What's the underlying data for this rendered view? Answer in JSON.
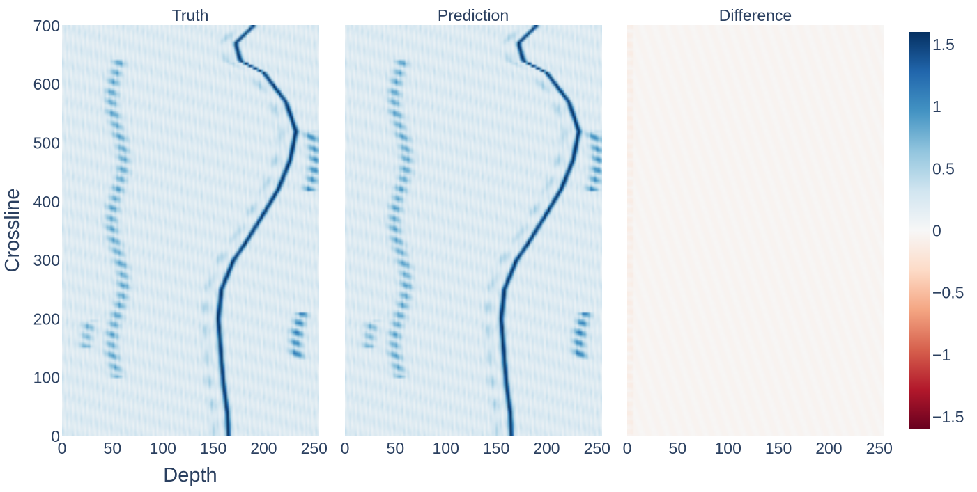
{
  "chart_data": {
    "type": "heatmap",
    "colorscale": "RdBu",
    "colorscale_reversed": false,
    "zlim": [
      -1.6,
      1.6
    ],
    "colorbar": {
      "ticks": [
        1.5,
        1,
        0.5,
        0,
        -0.5,
        -1,
        -1.5
      ],
      "tick_labels": [
        "1.5",
        "1",
        "0.5",
        "0",
        "−0.5",
        "−1",
        "−1.5"
      ]
    },
    "xlabel": "Depth",
    "ylabel": "Crossline",
    "xlim": [
      0,
      255
    ],
    "ylim": [
      0,
      701
    ],
    "x_ticks": [
      0,
      50,
      100,
      150,
      200,
      250
    ],
    "x_tick_labels": [
      "0",
      "50",
      "100",
      "150",
      "200",
      "250"
    ],
    "y_ticks": [
      0,
      100,
      200,
      300,
      400,
      500,
      600,
      700
    ],
    "y_tick_labels": [
      "0",
      "100",
      "200",
      "300",
      "400",
      "500",
      "600",
      "700"
    ],
    "panels": [
      {
        "title": "Truth",
        "kind": "seismic"
      },
      {
        "title": "Prediction",
        "kind": "seismic"
      },
      {
        "title": "Difference",
        "kind": "residual"
      }
    ],
    "bright_horizon": {
      "description_points": [
        {
          "crossline": 0,
          "depth": 165
        },
        {
          "crossline": 40,
          "depth": 164
        },
        {
          "crossline": 90,
          "depth": 160
        },
        {
          "crossline": 130,
          "depth": 158
        },
        {
          "crossline": 200,
          "depth": 155
        },
        {
          "crossline": 250,
          "depth": 158
        },
        {
          "crossline": 300,
          "depth": 170
        },
        {
          "crossline": 330,
          "depth": 182
        },
        {
          "crossline": 380,
          "depth": 200
        },
        {
          "crossline": 420,
          "depth": 214
        },
        {
          "crossline": 470,
          "depth": 226
        },
        {
          "crossline": 520,
          "depth": 232
        },
        {
          "crossline": 570,
          "depth": 222
        },
        {
          "crossline": 620,
          "depth": 200
        },
        {
          "crossline": 640,
          "depth": 177
        },
        {
          "crossline": 670,
          "depth": 172
        },
        {
          "crossline": 700,
          "depth": 190
        }
      ],
      "amplitude": 1.45
    },
    "secondary_bands": [
      {
        "depth_center": 55,
        "crossline_range": [
          100,
          640
        ],
        "amplitude": 0.65
      },
      {
        "depth_center": 30,
        "crossline_range": [
          150,
          200
        ],
        "amplitude": 0.55
      },
      {
        "depth_center": 238,
        "crossline_range": [
          130,
          210
        ],
        "amplitude": 0.9
      },
      {
        "depth_center": 245,
        "crossline_range": [
          420,
          520
        ],
        "amplitude": 0.8
      }
    ],
    "difference_max_abs": 0.25
  }
}
